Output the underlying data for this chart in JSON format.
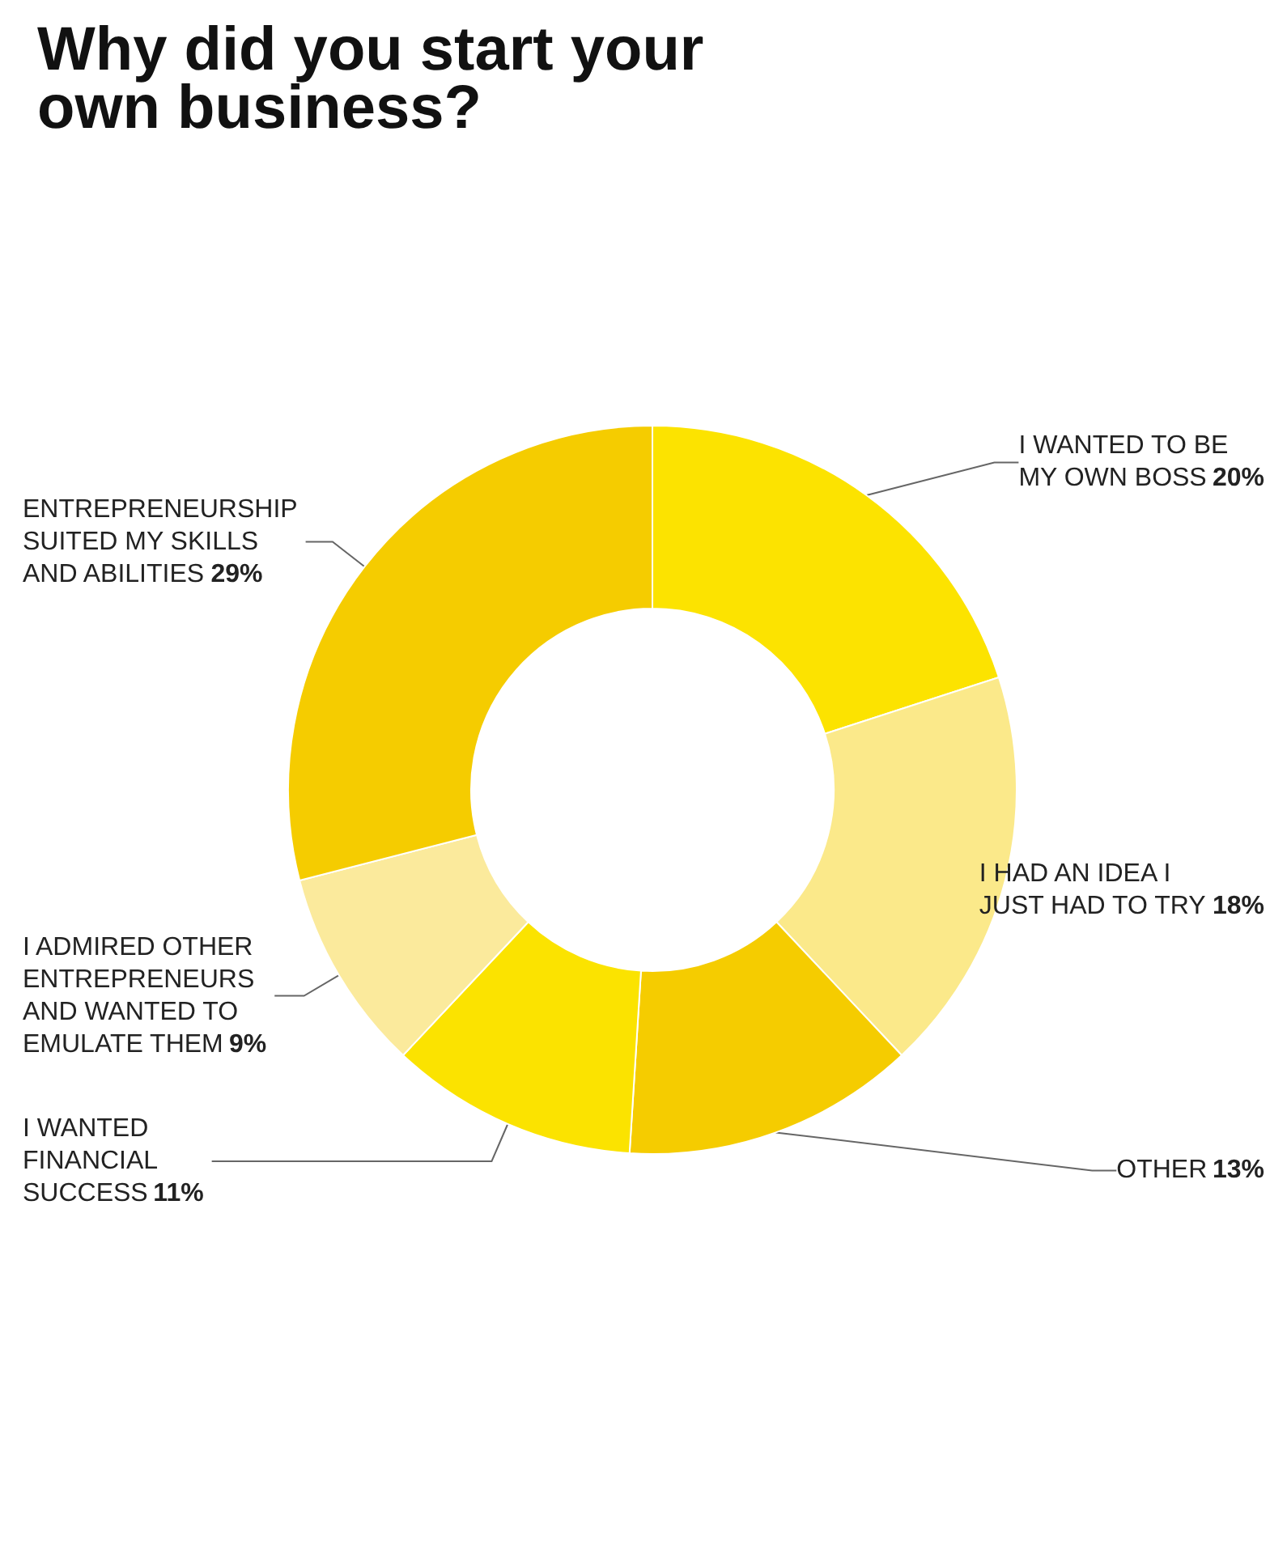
{
  "chart_data": {
    "type": "donut",
    "title": "Why did you start your\nown business?",
    "categories": [
      "I WANTED TO BE MY OWN BOSS",
      "I HAD AN IDEA I JUST HAD TO TRY",
      "OTHER",
      "I WANTED FINANCIAL SUCCESS",
      "I ADMIRED OTHER ENTREPRENEURS AND WANTED TO EMULATE THEM",
      "ENTREPRENEURSHIP SUITED MY SKILLS AND ABILITIES"
    ],
    "values": [
      20,
      18,
      13,
      11,
      9,
      29
    ],
    "value_labels": [
      "20%",
      "18%",
      "13%",
      "11%",
      "9%",
      "29%"
    ],
    "colors": [
      "#fce300",
      "#fbe98a",
      "#f5cc00",
      "#fbe300",
      "#fbea9c",
      "#f5cc00"
    ],
    "legend": false
  }
}
